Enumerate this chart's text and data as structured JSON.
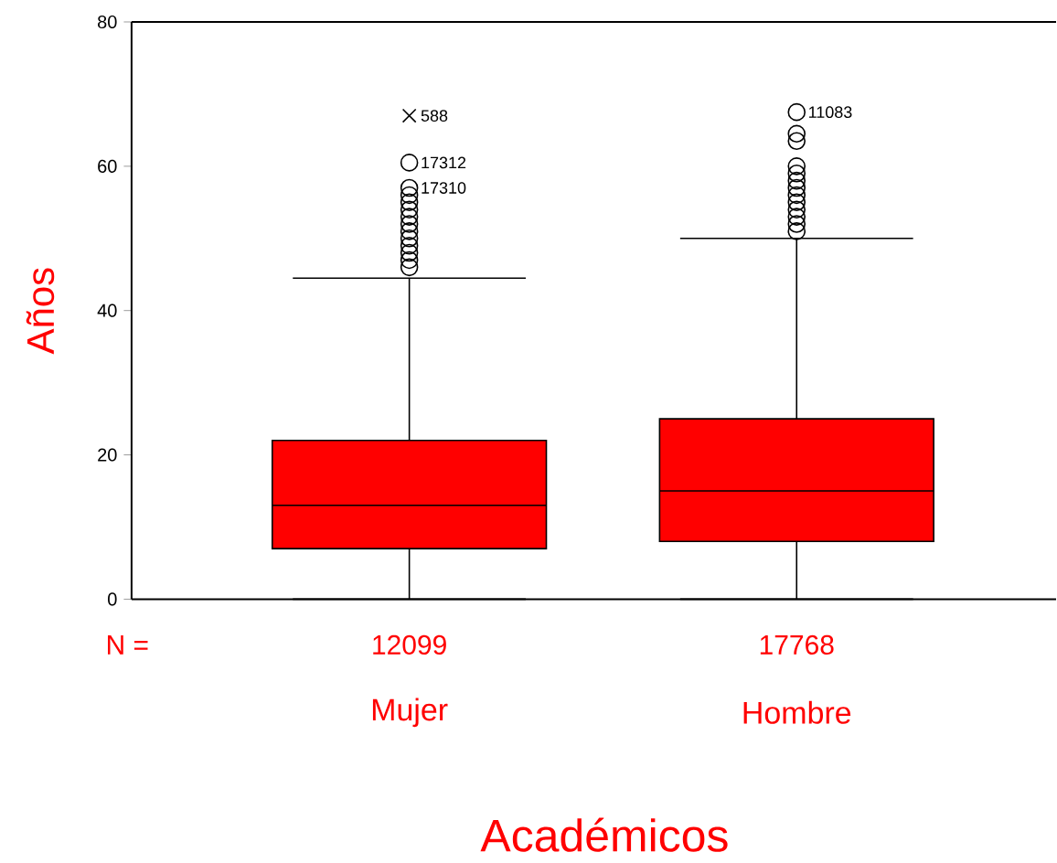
{
  "chart_data": {
    "type": "box",
    "xlabel": "Académicos",
    "ylabel": "Años",
    "categories": [
      "Mujer",
      "Hombre"
    ],
    "color": "#ff0000",
    "boxes": [
      {
        "low": 0,
        "q1": 7,
        "median": 13,
        "q3": 22,
        "high": 44.5,
        "outliers": [
          46,
          47,
          48,
          49,
          50,
          51,
          52,
          53,
          54,
          55,
          56,
          57,
          60.5
        ]
      },
      {
        "low": 0,
        "q1": 8,
        "median": 15,
        "q3": 25,
        "high": 50,
        "outliers": [
          51,
          52,
          53,
          54,
          55,
          56,
          57,
          58,
          59,
          60,
          63.5,
          64.5,
          67.5
        ]
      }
    ],
    "series": [
      {
        "type": "scatter",
        "x": [
          "Mujer"
        ],
        "values": [
          67
        ],
        "marker": "cross",
        "color": "#000000"
      }
    ],
    "ylim": [
      0,
      80
    ],
    "yticks": [
      0,
      20,
      40,
      60,
      80
    ],
    "annotations": [
      "N =",
      "12099",
      "17768",
      "588",
      "17312",
      "17310",
      "11083"
    ]
  }
}
